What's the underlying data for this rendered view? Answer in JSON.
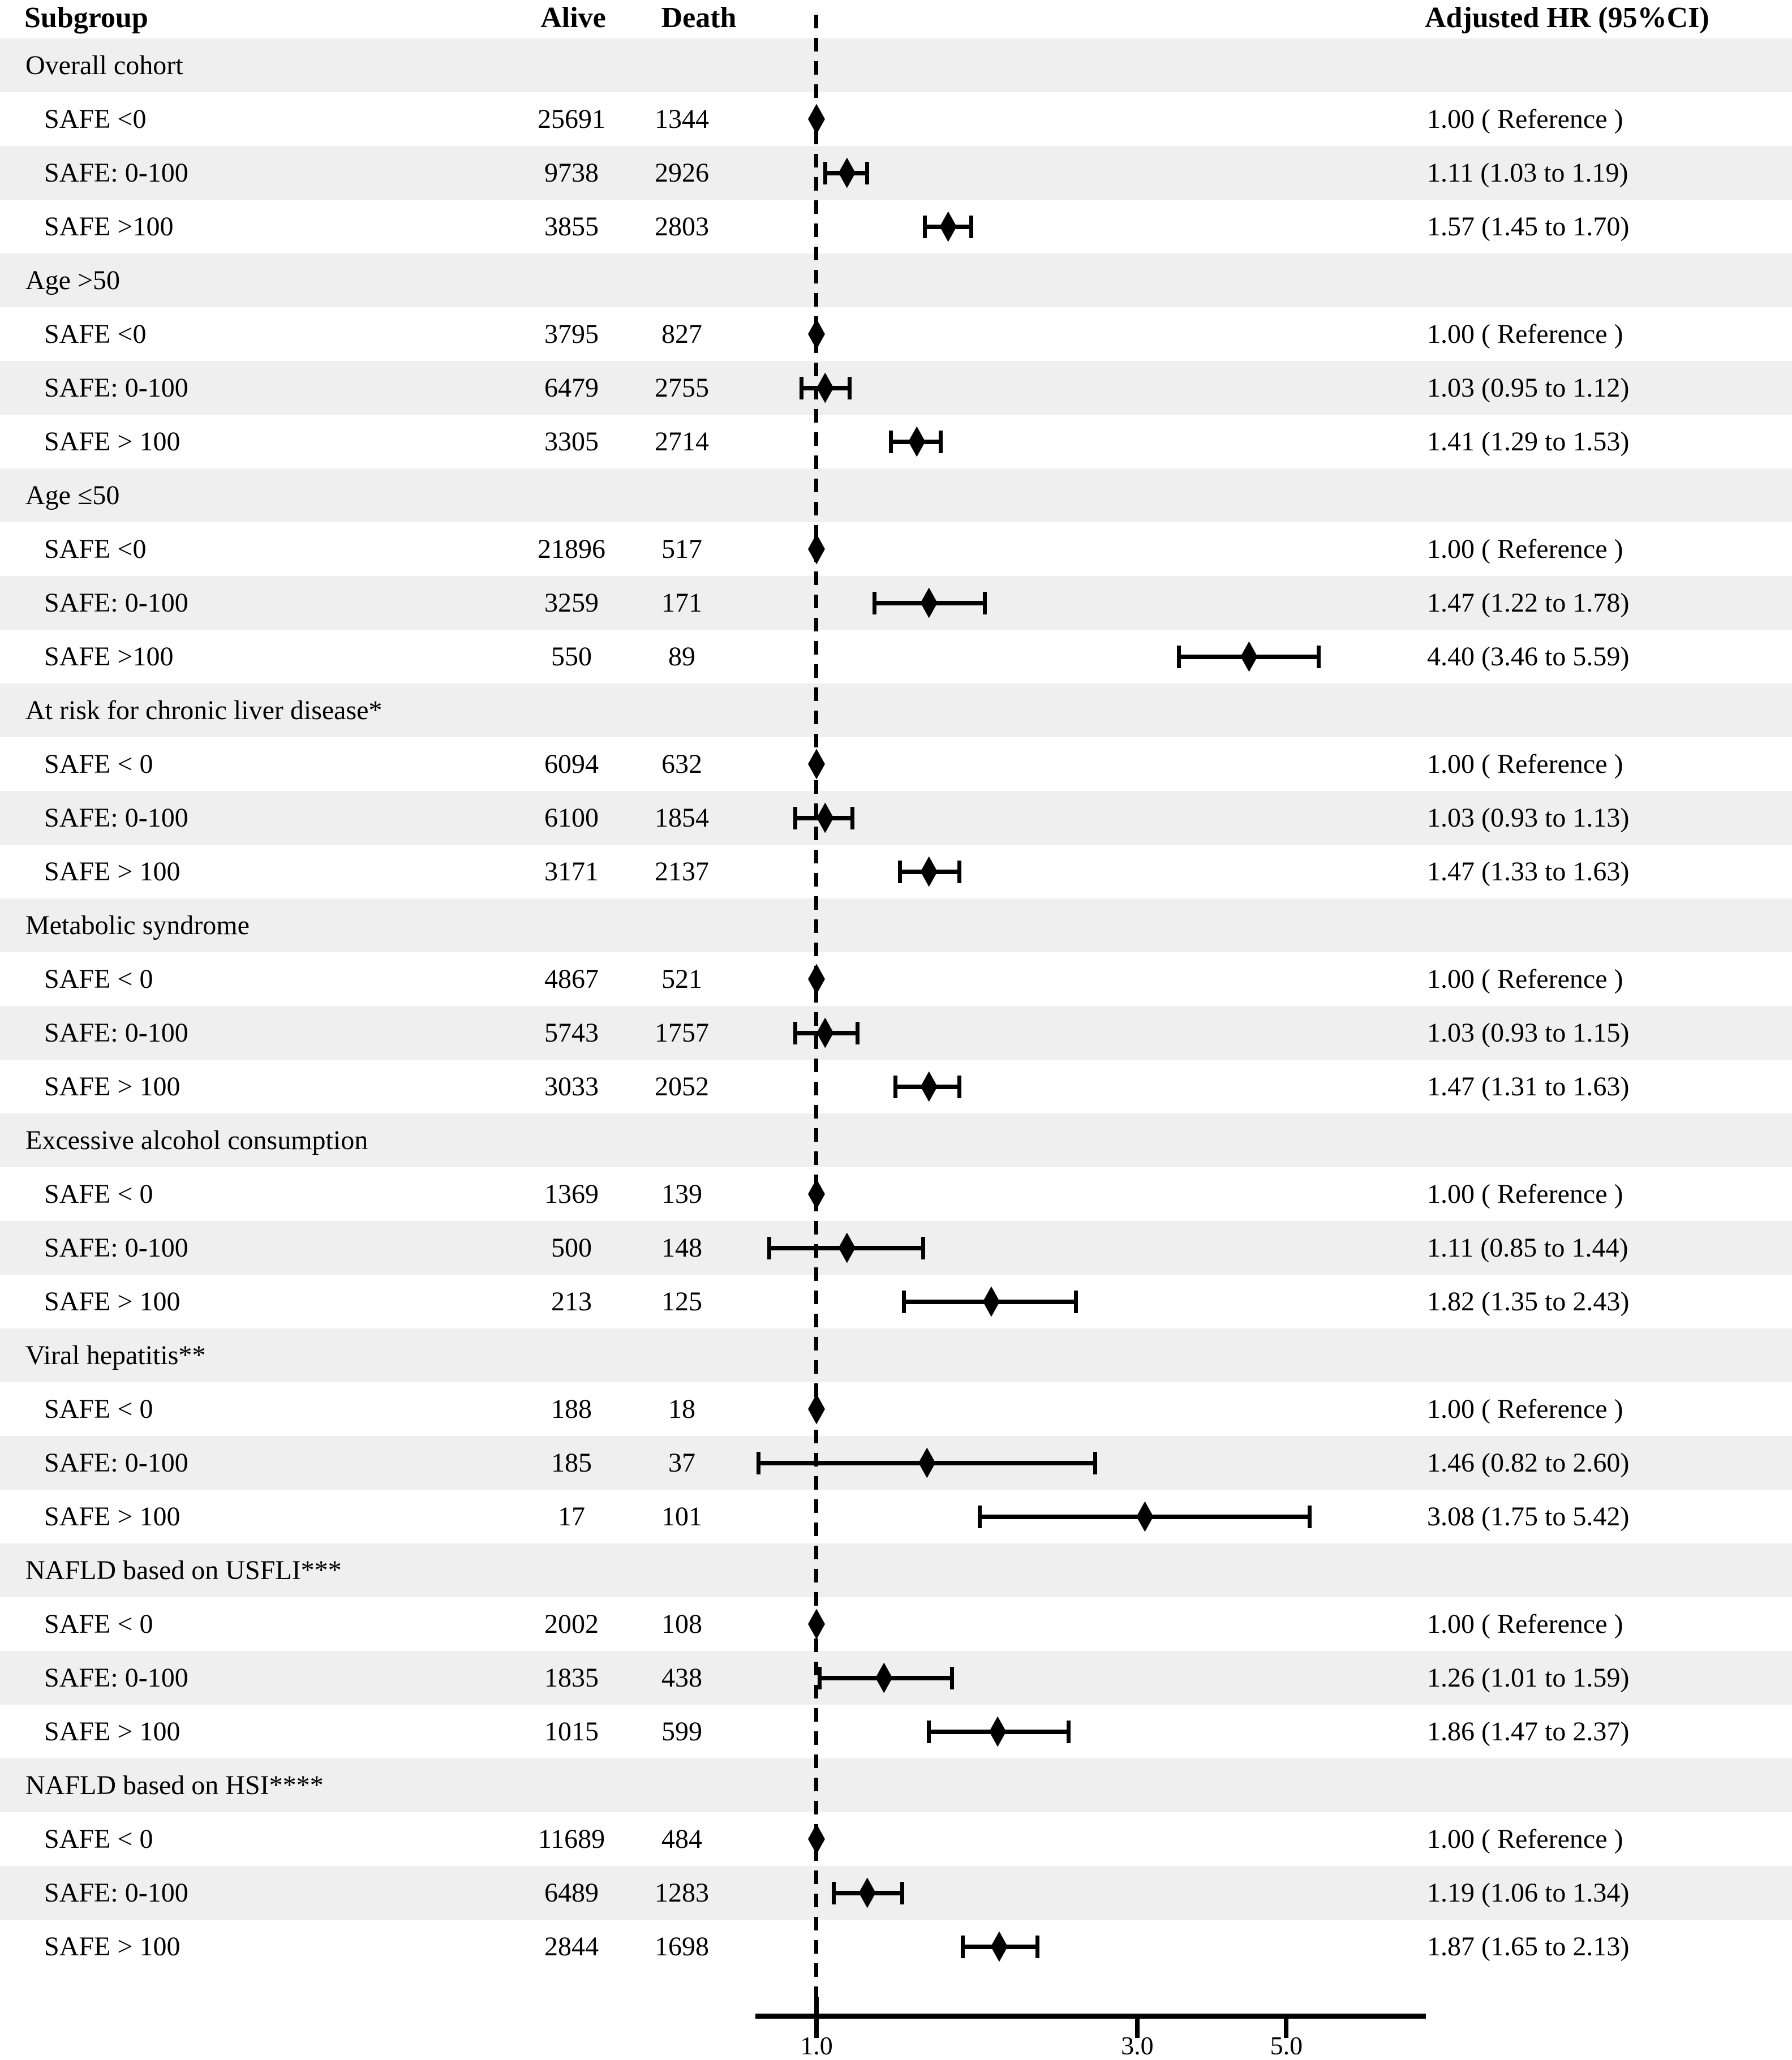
{
  "chart_data": {
    "type": "forest",
    "title": "",
    "columns": {
      "subgroup": "Subgroup",
      "alive": "Alive",
      "death": "Death",
      "hr": "Adjusted HR (95%CI)"
    },
    "x_axis": {
      "scale": "log",
      "range": [
        0.81,
        8.1
      ],
      "reference_line": 1.0,
      "ticks": [
        {
          "v": 1.0,
          "label": "1.0"
        },
        {
          "v": 3.0,
          "label": "3.0"
        },
        {
          "v": 5.0,
          "label": "5.0"
        }
      ]
    },
    "colors": {
      "marker": "#000000",
      "text": "#000000",
      "row_shade": "#efefef",
      "background": "#ffffff"
    },
    "sections": [
      {
        "label": "Overall cohort",
        "rows": [
          {
            "label": "SAFE <0",
            "alive": "25691",
            "death": "1344",
            "hr": 1.0,
            "ci_low": null,
            "ci_high": null,
            "hr_text": "1.00 ( Reference )"
          },
          {
            "label": "SAFE: 0-100",
            "alive": "9738",
            "death": "2926",
            "hr": 1.11,
            "ci_low": 1.03,
            "ci_high": 1.19,
            "hr_text": "1.11 (1.03 to 1.19)"
          },
          {
            "label": "SAFE >100",
            "alive": "3855",
            "death": "2803",
            "hr": 1.57,
            "ci_low": 1.45,
            "ci_high": 1.7,
            "hr_text": "1.57 (1.45 to 1.70)"
          }
        ]
      },
      {
        "label": "Age >50",
        "rows": [
          {
            "label": "SAFE <0",
            "alive": "3795",
            "death": "827",
            "hr": 1.0,
            "ci_low": null,
            "ci_high": null,
            "hr_text": "1.00 ( Reference )"
          },
          {
            "label": "SAFE: 0-100",
            "alive": "6479",
            "death": "2755",
            "hr": 1.03,
            "ci_low": 0.95,
            "ci_high": 1.12,
            "hr_text": "1.03 (0.95 to 1.12)"
          },
          {
            "label": "SAFE > 100",
            "alive": "3305",
            "death": "2714",
            "hr": 1.41,
            "ci_low": 1.29,
            "ci_high": 1.53,
            "hr_text": "1.41 (1.29 to 1.53)"
          }
        ]
      },
      {
        "label": "Age ≤50",
        "rows": [
          {
            "label": "SAFE <0",
            "alive": "21896",
            "death": "517",
            "hr": 1.0,
            "ci_low": null,
            "ci_high": null,
            "hr_text": "1.00 ( Reference )"
          },
          {
            "label": "SAFE: 0-100",
            "alive": "3259",
            "death": "171",
            "hr": 1.47,
            "ci_low": 1.22,
            "ci_high": 1.78,
            "hr_text": "1.47 (1.22 to 1.78)"
          },
          {
            "label": "SAFE >100",
            "alive": "550",
            "death": "89",
            "hr": 4.4,
            "ci_low": 3.46,
            "ci_high": 5.59,
            "hr_text": "4.40 (3.46 to 5.59)"
          }
        ]
      },
      {
        "label": "At risk for chronic liver disease*",
        "rows": [
          {
            "label": "SAFE < 0",
            "alive": "6094",
            "death": "632",
            "hr": 1.0,
            "ci_low": null,
            "ci_high": null,
            "hr_text": "1.00 ( Reference )"
          },
          {
            "label": "SAFE: 0-100",
            "alive": "6100",
            "death": "1854",
            "hr": 1.03,
            "ci_low": 0.93,
            "ci_high": 1.13,
            "hr_text": "1.03 (0.93 to 1.13)"
          },
          {
            "label": "SAFE > 100",
            "alive": "3171",
            "death": "2137",
            "hr": 1.47,
            "ci_low": 1.33,
            "ci_high": 1.63,
            "hr_text": "1.47 (1.33 to 1.63)"
          }
        ]
      },
      {
        "label": "Metabolic syndrome",
        "rows": [
          {
            "label": "SAFE < 0",
            "alive": "4867",
            "death": "521",
            "hr": 1.0,
            "ci_low": null,
            "ci_high": null,
            "hr_text": "1.00 ( Reference )"
          },
          {
            "label": "SAFE: 0-100",
            "alive": "5743",
            "death": "1757",
            "hr": 1.03,
            "ci_low": 0.93,
            "ci_high": 1.15,
            "hr_text": "1.03 (0.93 to 1.15)"
          },
          {
            "label": "SAFE > 100",
            "alive": "3033",
            "death": "2052",
            "hr": 1.47,
            "ci_low": 1.31,
            "ci_high": 1.63,
            "hr_text": "1.47 (1.31 to 1.63)"
          }
        ]
      },
      {
        "label": "Excessive alcohol consumption",
        "rows": [
          {
            "label": "SAFE < 0",
            "alive": "1369",
            "death": "139",
            "hr": 1.0,
            "ci_low": null,
            "ci_high": null,
            "hr_text": "1.00 ( Reference )"
          },
          {
            "label": "SAFE: 0-100",
            "alive": "500",
            "death": "148",
            "hr": 1.11,
            "ci_low": 0.85,
            "ci_high": 1.44,
            "hr_text": "1.11 (0.85 to 1.44)"
          },
          {
            "label": "SAFE > 100",
            "alive": "213",
            "death": "125",
            "hr": 1.82,
            "ci_low": 1.35,
            "ci_high": 2.43,
            "hr_text": "1.82 (1.35 to 2.43)"
          }
        ]
      },
      {
        "label": "Viral hepatitis**",
        "rows": [
          {
            "label": "SAFE < 0",
            "alive": "188",
            "death": "18",
            "hr": 1.0,
            "ci_low": null,
            "ci_high": null,
            "hr_text": "1.00 ( Reference )"
          },
          {
            "label": "SAFE: 0-100",
            "alive": "185",
            "death": "37",
            "hr": 1.46,
            "ci_low": 0.82,
            "ci_high": 2.6,
            "hr_text": "1.46 (0.82 to 2.60)"
          },
          {
            "label": "SAFE > 100",
            "alive": "17",
            "death": "101",
            "hr": 3.08,
            "ci_low": 1.75,
            "ci_high": 5.42,
            "hr_text": "3.08 (1.75 to 5.42)"
          }
        ]
      },
      {
        "label": "NAFLD based on USFLI***",
        "rows": [
          {
            "label": "SAFE < 0",
            "alive": "2002",
            "death": "108",
            "hr": 1.0,
            "ci_low": null,
            "ci_high": null,
            "hr_text": "1.00 ( Reference )"
          },
          {
            "label": "SAFE: 0-100",
            "alive": "1835",
            "death": "438",
            "hr": 1.26,
            "ci_low": 1.01,
            "ci_high": 1.59,
            "hr_text": "1.26 (1.01 to 1.59)"
          },
          {
            "label": "SAFE > 100",
            "alive": "1015",
            "death": "599",
            "hr": 1.86,
            "ci_low": 1.47,
            "ci_high": 2.37,
            "hr_text": "1.86 (1.47 to 2.37)"
          }
        ]
      },
      {
        "label": "NAFLD based on HSI****",
        "rows": [
          {
            "label": "SAFE < 0",
            "alive": "11689",
            "death": "484",
            "hr": 1.0,
            "ci_low": null,
            "ci_high": null,
            "hr_text": "1.00 ( Reference )"
          },
          {
            "label": "SAFE: 0-100",
            "alive": "6489",
            "death": "1283",
            "hr": 1.19,
            "ci_low": 1.06,
            "ci_high": 1.34,
            "hr_text": "1.19 (1.06 to 1.34)"
          },
          {
            "label": "SAFE > 100",
            "alive": "2844",
            "death": "1698",
            "hr": 1.87,
            "ci_low": 1.65,
            "ci_high": 2.13,
            "hr_text": "1.87 (1.65 to 2.13)"
          }
        ]
      }
    ]
  }
}
